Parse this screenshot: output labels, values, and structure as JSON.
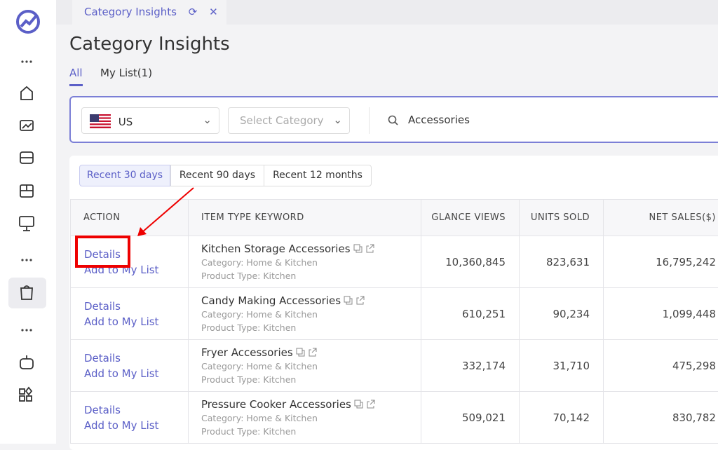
{
  "tab": {
    "label": "Category Insights"
  },
  "header": {
    "title": "Category Insights"
  },
  "tabs": [
    "All",
    "My List(1)"
  ],
  "filters": {
    "country": "US",
    "category_placeholder": "Select Category",
    "search": "Accessories"
  },
  "periods": [
    "Recent 30 days",
    "Recent 90 days",
    "Recent 12 months"
  ],
  "table": {
    "columns": [
      "ACTION",
      "ITEM TYPE KEYWORD",
      "GLANCE VIEWS",
      "UNITS SOLD",
      "NET SALES($)"
    ],
    "rows": [
      {
        "actions": [
          "Details",
          "Add to My List"
        ],
        "keyword": "Kitchen Storage Accessories",
        "category": "Category: Home & Kitchen",
        "product_type": "Product Type: Kitchen",
        "glance_views": "10,360,845",
        "units_sold": "823,631",
        "net_sales": "16,795,242"
      },
      {
        "actions": [
          "Details",
          "Add to My List"
        ],
        "keyword": "Candy Making Accessories",
        "category": "Category: Home & Kitchen",
        "product_type": "Product Type: Kitchen",
        "glance_views": "610,251",
        "units_sold": "90,234",
        "net_sales": "1,099,448"
      },
      {
        "actions": [
          "Details",
          "Add to My List"
        ],
        "keyword": "Fryer Accessories",
        "category": "Category: Home & Kitchen",
        "product_type": "Product Type: Kitchen",
        "glance_views": "332,174",
        "units_sold": "31,710",
        "net_sales": "475,298"
      },
      {
        "actions": [
          "Details",
          "Add to My List"
        ],
        "keyword": "Pressure Cooker Accessories",
        "category": "Category: Home & Kitchen",
        "product_type": "Product Type: Kitchen",
        "glance_views": "509,021",
        "units_sold": "70,142",
        "net_sales": "830,782"
      }
    ]
  }
}
